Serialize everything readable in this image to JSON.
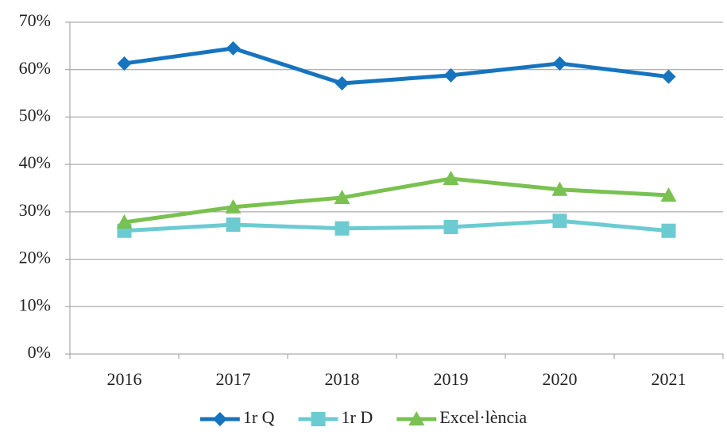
{
  "chart_data": {
    "type": "line",
    "categories": [
      "2016",
      "2017",
      "2018",
      "2019",
      "2020",
      "2021"
    ],
    "series": [
      {
        "name": "1r Q",
        "color": "#1674bf",
        "marker": "diamond",
        "values": [
          61.3,
          64.5,
          57.1,
          58.8,
          61.3,
          58.5
        ]
      },
      {
        "name": "1r D",
        "color": "#6ccbd1",
        "marker": "square",
        "values": [
          26.0,
          27.3,
          26.5,
          26.8,
          28.1,
          26.0
        ]
      },
      {
        "name": "Excel·lència",
        "color": "#79c150",
        "marker": "triangle",
        "values": [
          27.8,
          31.0,
          33.0,
          37.0,
          34.7,
          33.5
        ]
      }
    ],
    "ylim": [
      0,
      70
    ],
    "yticks": [
      {
        "value": 0,
        "label": "0%"
      },
      {
        "value": 10,
        "label": "10%"
      },
      {
        "value": 20,
        "label": "20%"
      },
      {
        "value": 30,
        "label": "30%"
      },
      {
        "value": 40,
        "label": "40%"
      },
      {
        "value": 50,
        "label": "50%"
      },
      {
        "value": 60,
        "label": "60%"
      },
      {
        "value": 70,
        "label": "70%"
      }
    ],
    "grid": true,
    "legend": "bottom"
  }
}
